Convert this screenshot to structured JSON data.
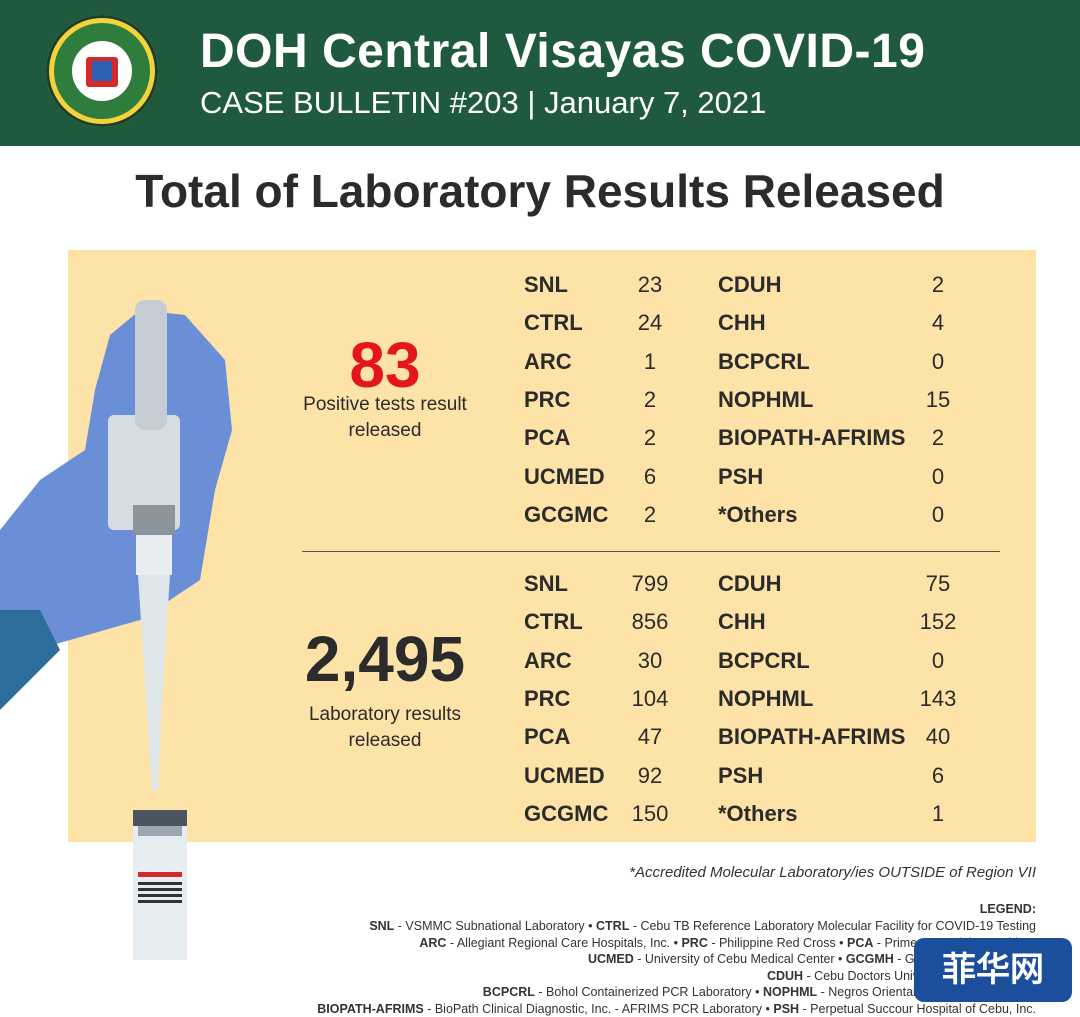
{
  "header": {
    "title": "DOH Central Visayas COVID-19",
    "subtitle": "CASE BULLETIN #203 | January 7, 2021",
    "seal_text": [
      "REPUBLIC OF THE PHILIPPINES",
      "DEPARTMENT OF HEALTH"
    ]
  },
  "main_title": "Total of Laboratory Results Released",
  "positive": {
    "number": "83",
    "caption_line1": "Positive tests result",
    "caption_line2": "released"
  },
  "total": {
    "number": "2,495",
    "caption_line1": "Laboratory results",
    "caption_line2": "released"
  },
  "positive_table": [
    {
      "lab1": "SNL",
      "val1": "23",
      "lab2": "CDUH",
      "val2": "2"
    },
    {
      "lab1": "CTRL",
      "val1": "24",
      "lab2": "CHH",
      "val2": "4"
    },
    {
      "lab1": "ARC",
      "val1": "1",
      "lab2": "BCPCRL",
      "val2": "0"
    },
    {
      "lab1": "PRC",
      "val1": "2",
      "lab2": "NOPHML",
      "val2": "15"
    },
    {
      "lab1": "PCA",
      "val1": "2",
      "lab2": "BIOPATH-AFRIMS",
      "val2": "2"
    },
    {
      "lab1": "UCMED",
      "val1": "6",
      "lab2": "PSH",
      "val2": "0"
    },
    {
      "lab1": "GCGMC",
      "val1": "2",
      "lab2": "*Others",
      "val2": "0"
    }
  ],
  "total_table": [
    {
      "lab1": "SNL",
      "val1": "799",
      "lab2": "CDUH",
      "val2": "75"
    },
    {
      "lab1": "CTRL",
      "val1": "856",
      "lab2": "CHH",
      "val2": "152"
    },
    {
      "lab1": "ARC",
      "val1": "30",
      "lab2": "BCPCRL",
      "val2": "0"
    },
    {
      "lab1": "PRC",
      "val1": "104",
      "lab2": "NOPHML",
      "val2": "143"
    },
    {
      "lab1": "PCA",
      "val1": "47",
      "lab2": "BIOPATH-AFRIMS",
      "val2": "40"
    },
    {
      "lab1": "UCMED",
      "val1": "92",
      "lab2": "PSH",
      "val2": "6"
    },
    {
      "lab1": "GCGMC",
      "val1": "150",
      "lab2": "*Others",
      "val2": "1"
    }
  ],
  "note": "*Accredited Molecular Laboratory/ies OUTSIDE of Region VII",
  "legend": {
    "title": "LEGEND:",
    "lines": [
      [
        [
          "SNL",
          " - VSMMC Subnational Laboratory • "
        ],
        [
          "CTRL",
          " - Cebu TB Reference Laboratory Molecular Facility for COVID-19 Testing"
        ]
      ],
      [
        [
          "ARC",
          " - Allegiant Regional Care Hospitals, Inc. • "
        ],
        [
          "PRC",
          " - Philippine Red Cross • "
        ],
        [
          "PCA",
          " - Prime Care Alpha Covid-19"
        ]
      ],
      [
        [
          "UCMED",
          " - University of Cebu Medical Center • "
        ],
        [
          "GCGMH",
          " - Gov. Celestino Gallares"
        ]
      ],
      [
        [
          "CDUH",
          " - Cebu Doctors University Hospital • "
        ],
        [
          "CHH",
          ""
        ]
      ],
      [
        [
          "BCPCRL",
          " - Bohol Containerized PCR Laboratory • "
        ],
        [
          "NOPHML",
          " - Negros Oriental Provincial Hospital M"
        ]
      ],
      [
        [
          "BIOPATH-AFRIMS",
          " - BioPath Clinical Diagnostic, Inc. - AFRIMS PCR Laboratory • "
        ],
        [
          "PSH",
          " - Perpetual Succour Hospital of Cebu, Inc."
        ]
      ]
    ]
  },
  "watermark": "菲华网",
  "colors": {
    "header_bg": "#1f5a3e",
    "panel_bg": "#fde3a7",
    "positive_red": "#e3161b",
    "glove_blue": "#6b8fd6",
    "watermark_bg": "#1b4f9c"
  },
  "icons": [
    "doh-seal-icon",
    "pipette-illustration",
    "sample-tube-illustration"
  ]
}
